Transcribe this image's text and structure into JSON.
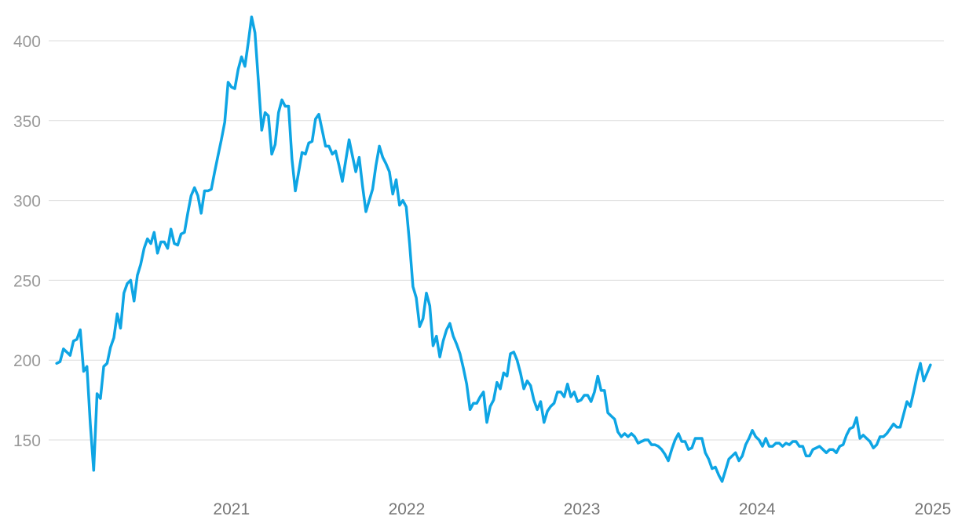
{
  "chart_data": {
    "type": "line",
    "title": "",
    "xlabel": "",
    "ylabel": "",
    "x_start": "2020-01-03",
    "x_step_days": 7,
    "xlim": [
      "2020-01-01",
      "2025-01-01"
    ],
    "ylim": [
      120,
      420
    ],
    "y_ticks": [
      150,
      200,
      250,
      300,
      350,
      400
    ],
    "x_ticks": [
      {
        "date": "2021-01-01",
        "label": "2021"
      },
      {
        "date": "2022-01-01",
        "label": "2022"
      },
      {
        "date": "2023-01-01",
        "label": "2023"
      },
      {
        "date": "2024-01-01",
        "label": "2024"
      },
      {
        "date": "2025-01-01",
        "label": "2025"
      }
    ],
    "grid": true,
    "legend": "none",
    "color": "#0ea5e4",
    "series": [
      {
        "values": [
          198,
          199,
          207,
          205,
          203,
          212,
          213,
          219,
          193,
          196,
          160,
          131,
          179,
          176,
          196,
          198,
          208,
          214,
          229,
          220,
          242,
          248,
          250,
          237,
          253,
          260,
          270,
          276,
          273,
          280,
          267,
          274,
          274,
          270,
          282,
          273,
          272,
          279,
          280,
          292,
          303,
          308,
          303,
          292,
          306,
          306,
          307,
          318,
          328,
          338,
          349,
          374,
          371,
          370,
          382,
          390,
          384,
          399,
          415,
          405,
          375,
          344,
          355,
          353,
          329,
          335,
          355,
          363,
          359,
          359,
          326,
          306,
          318,
          330,
          329,
          336,
          337,
          351,
          354,
          344,
          334,
          334,
          329,
          331,
          322,
          312,
          325,
          338,
          328,
          318,
          327,
          309,
          293,
          300,
          307,
          322,
          334,
          327,
          323,
          318,
          304,
          313,
          297,
          300,
          296,
          273,
          246,
          239,
          221,
          226,
          242,
          234,
          209,
          215,
          202,
          212,
          219,
          223,
          215,
          210,
          204,
          195,
          185,
          169,
          173,
          173,
          177,
          180,
          161,
          171,
          175,
          186,
          182,
          192,
          190,
          204,
          205,
          200,
          192,
          182,
          187,
          184,
          175,
          169,
          174,
          161,
          168,
          171,
          173,
          180,
          180,
          177,
          185,
          177,
          180,
          174,
          175,
          178,
          178,
          174,
          180,
          190,
          181,
          181,
          167,
          165,
          163,
          155,
          152,
          154,
          152,
          154,
          152,
          148,
          149,
          150,
          150,
          147,
          147,
          146,
          144,
          141,
          137,
          144,
          150,
          154,
          149,
          149,
          144,
          145,
          151,
          151,
          151,
          142,
          138,
          132,
          133,
          128,
          124,
          131,
          138,
          140,
          142,
          137,
          140,
          147,
          151,
          156,
          152,
          150,
          146,
          151,
          146,
          146,
          148,
          148,
          146,
          148,
          147,
          149,
          149,
          146,
          146,
          140,
          140,
          144,
          145,
          146,
          144,
          142,
          144,
          144,
          142,
          146,
          147,
          153,
          157,
          158,
          164,
          151,
          153,
          151,
          149,
          145,
          147,
          152,
          152,
          154,
          157,
          160,
          158,
          158,
          166,
          174,
          171,
          180,
          190,
          198,
          187,
          192,
          197
        ]
      }
    ]
  }
}
